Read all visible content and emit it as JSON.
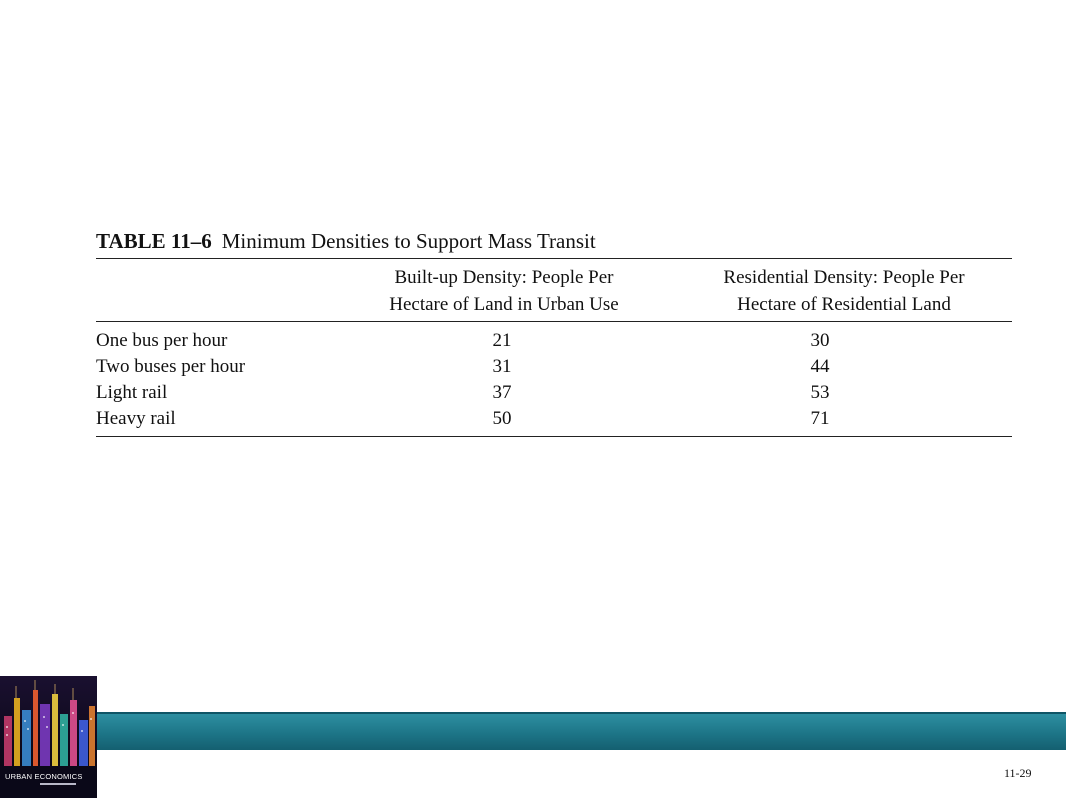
{
  "table": {
    "label": "TABLE 11–6",
    "title": "Minimum Densities to Support Mass Transit",
    "headers": {
      "built_up": [
        "Built-up Density: People Per",
        "Hectare of Land in Urban Use"
      ],
      "residential": [
        "Residential Density: People Per",
        "Hectare of Residential Land"
      ]
    },
    "rows": [
      {
        "label": "One bus per hour",
        "built_up": "21",
        "residential": "30"
      },
      {
        "label": "Two buses per hour",
        "built_up": "31",
        "residential": "44"
      },
      {
        "label": "Light rail",
        "built_up": "37",
        "residential": "53"
      },
      {
        "label": "Heavy rail",
        "built_up": "50",
        "residential": "71"
      }
    ]
  },
  "footer": {
    "book_title": "URBAN ECONOMICS",
    "page_number": "11-29",
    "band_color": "#1d7587"
  }
}
